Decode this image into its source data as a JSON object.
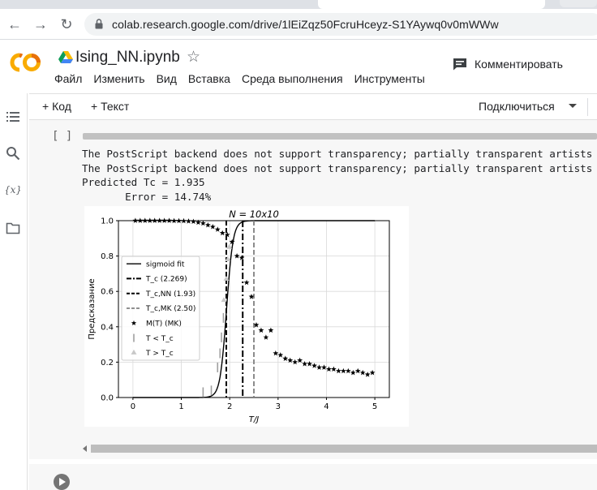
{
  "browser": {
    "url": "colab.research.google.com/drive/1lEiZqz50FcruHceyz-S1YAywq0v0mWWw"
  },
  "header": {
    "notebook_title": "Ising_NN.ipynb",
    "menu": [
      "Файл",
      "Изменить",
      "Вид",
      "Вставка",
      "Среда выполнения",
      "Инструменты"
    ],
    "comment_label": "Комментировать"
  },
  "toolbar": {
    "add_code": "+ Код",
    "add_text": "+ Текст",
    "connect": "Подключиться"
  },
  "cell": {
    "run_indicator": "[ ]",
    "output_lines": [
      "The PostScript backend does not support transparency; partially transparent artists",
      "The PostScript backend does not support transparency; partially transparent artists",
      "Predicted Tc = 1.935",
      "       Error = 14.74%"
    ]
  },
  "chart_data": {
    "type": "scatter",
    "title": "N = 10x10",
    "xlabel": "T/J",
    "ylabel": "Предсказание",
    "xlim": [
      -0.3,
      5.3
    ],
    "ylim": [
      0,
      1
    ],
    "xticks": [
      "0",
      "1",
      "2",
      "3",
      "4",
      "5"
    ],
    "yticks": [
      "0.0",
      "0.2",
      "0.4",
      "0.6",
      "0.8",
      "1.0"
    ],
    "grid": true,
    "legend_position": "center-left",
    "legend": [
      "sigmoid fit",
      "T_c (2.269)",
      "T_c,NN (1.93)",
      "T_c,MK (2.50)",
      "M(T) (MK)",
      "T < T_c",
      "T > T_c"
    ],
    "vlines": [
      {
        "name": "T_c (2.269)",
        "x": 2.269,
        "style": "dashdot"
      },
      {
        "name": "T_c,NN (1.93)",
        "x": 1.93,
        "style": "dashed"
      },
      {
        "name": "T_c,MK (2.50)",
        "x": 2.5,
        "style": "dashed-gray"
      }
    ],
    "sigmoid": {
      "center": 1.935,
      "k": 15
    },
    "magnetization": {
      "x": [
        0.05,
        0.15,
        0.25,
        0.35,
        0.45,
        0.55,
        0.65,
        0.75,
        0.85,
        0.95,
        1.05,
        1.15,
        1.25,
        1.35,
        1.45,
        1.55,
        1.65,
        1.75,
        1.85,
        1.95,
        2.05,
        2.15,
        2.25,
        2.35,
        2.45,
        2.55,
        2.65,
        2.75,
        2.85,
        2.95,
        3.05,
        3.15,
        3.25,
        3.35,
        3.45,
        3.55,
        3.65,
        3.75,
        3.85,
        3.95,
        4.05,
        4.15,
        4.25,
        4.35,
        4.45,
        4.55,
        4.65,
        4.75,
        4.85,
        4.95
      ],
      "y": [
        1.0,
        1.0,
        1.0,
        1.0,
        1.0,
        1.0,
        1.0,
        1.0,
        0.999,
        0.999,
        0.998,
        0.997,
        0.995,
        0.99,
        0.985,
        0.975,
        0.965,
        0.95,
        0.93,
        0.92,
        0.88,
        0.8,
        0.79,
        0.65,
        0.57,
        0.41,
        0.38,
        0.34,
        0.38,
        0.25,
        0.24,
        0.22,
        0.21,
        0.2,
        0.21,
        0.19,
        0.19,
        0.18,
        0.17,
        0.17,
        0.16,
        0.16,
        0.15,
        0.15,
        0.15,
        0.14,
        0.15,
        0.14,
        0.13,
        0.14
      ]
    },
    "predictions_below": {
      "x": [
        1.45,
        1.62,
        1.75,
        1.8,
        1.83,
        1.87
      ],
      "y": [
        0.03,
        0.04,
        0.17,
        0.25,
        0.34,
        0.45
      ]
    },
    "predictions_above": {
      "x": [
        1.88,
        1.93,
        1.96,
        1.99
      ],
      "y": [
        0.55,
        0.67,
        0.78,
        0.85
      ]
    },
    "colors": {
      "line": "#000000",
      "below": "#a0a0a0",
      "above": "#c8c8c8",
      "mk_line": "#808080"
    }
  }
}
